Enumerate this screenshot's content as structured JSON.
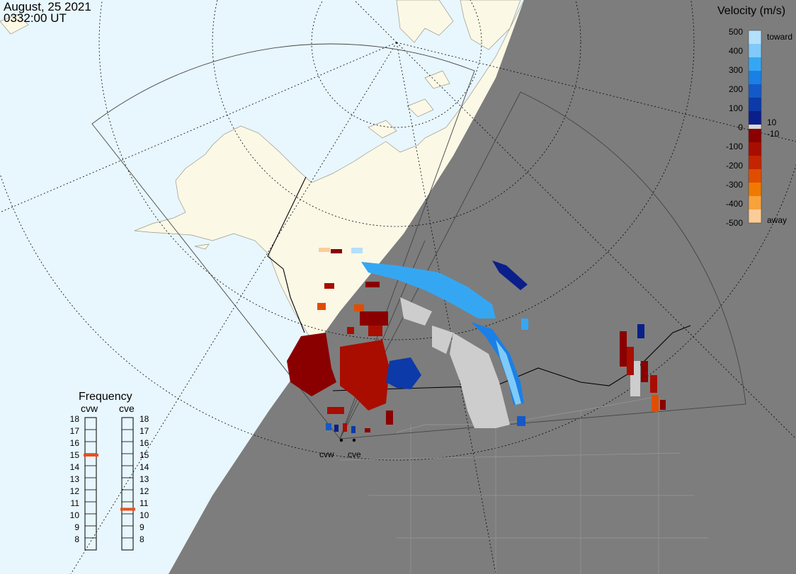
{
  "header": {
    "date": "August, 25 2021",
    "time": "0332:00 UT"
  },
  "legend": {
    "title": "Velocity (m/s)",
    "ticks": [
      "500",
      "400",
      "300",
      "200",
      "100",
      "0",
      "-100",
      "-200",
      "-300",
      "-400",
      "-500"
    ],
    "toward_label": "toward",
    "away_label": "away",
    "pos_threshold": "10",
    "neg_threshold": "-10",
    "colors": [
      "#b3e0fb",
      "#7fcaf8",
      "#35a7f2",
      "#1a80e6",
      "#1459c8",
      "#0c3aa8",
      "#0a1f8a",
      "#d8d8d8",
      "#8a0000",
      "#a80d00",
      "#c42400",
      "#e04d00",
      "#f07a00",
      "#f8a23c",
      "#fccc98"
    ]
  },
  "frequency": {
    "title": "Frequency",
    "stations": [
      {
        "name": "cvw",
        "value_mhz": 15
      },
      {
        "name": "cve",
        "value_mhz": 10.5
      }
    ],
    "scale": [
      "18",
      "17",
      "16",
      "15",
      "14",
      "13",
      "12",
      "11",
      "10",
      "9",
      "8"
    ]
  },
  "radar_labels": [
    "cvw",
    "cve"
  ],
  "colors": {
    "ocean": "#e8f6fd",
    "land": "#fbf8e6",
    "night": "#7d7d7d",
    "marker": "#e8501e",
    "ground_scatter": "#cdcdcd"
  }
}
